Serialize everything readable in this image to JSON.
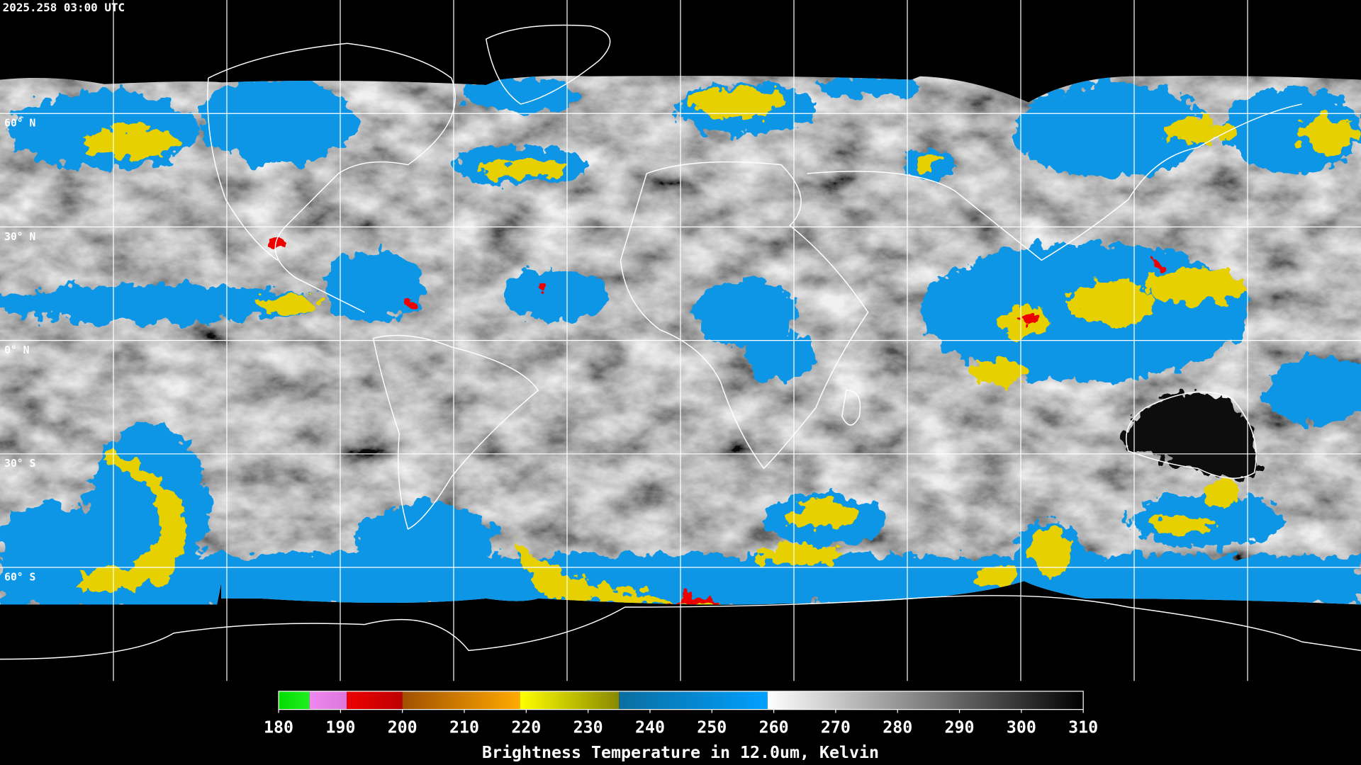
{
  "header": {
    "timestamp": "2025.258 03:00 UTC"
  },
  "map": {
    "latitude_labels": [
      "60° N",
      "30° N",
      "0° N",
      "30° S",
      "60° S"
    ]
  },
  "colorbar": {
    "title": "Brightness Temperature in 12.0um, Kelvin",
    "range": [
      180,
      310
    ],
    "ticks": [
      180,
      190,
      200,
      210,
      220,
      230,
      240,
      250,
      260,
      270,
      280,
      290,
      300,
      310
    ],
    "segments": [
      {
        "from": 180,
        "to": 185,
        "colors": [
          "#00dd00",
          "#22ee22"
        ]
      },
      {
        "from": 185,
        "to": 191,
        "colors": [
          "#ee88ee",
          "#dd77dd"
        ]
      },
      {
        "from": 191,
        "to": 200,
        "colors": [
          "#ee0000",
          "#bb0000"
        ]
      },
      {
        "from": 200,
        "to": 219,
        "colors": [
          "#a05000",
          "#ffaa00"
        ]
      },
      {
        "from": 219,
        "to": 235,
        "colors": [
          "#ffff00",
          "#888800"
        ]
      },
      {
        "from": 235,
        "to": 259,
        "colors": [
          "#0a6ea0",
          "#00a0ff"
        ]
      },
      {
        "from": 259,
        "to": 310,
        "colors": [
          "#ffffff",
          "#000000"
        ]
      }
    ]
  }
}
